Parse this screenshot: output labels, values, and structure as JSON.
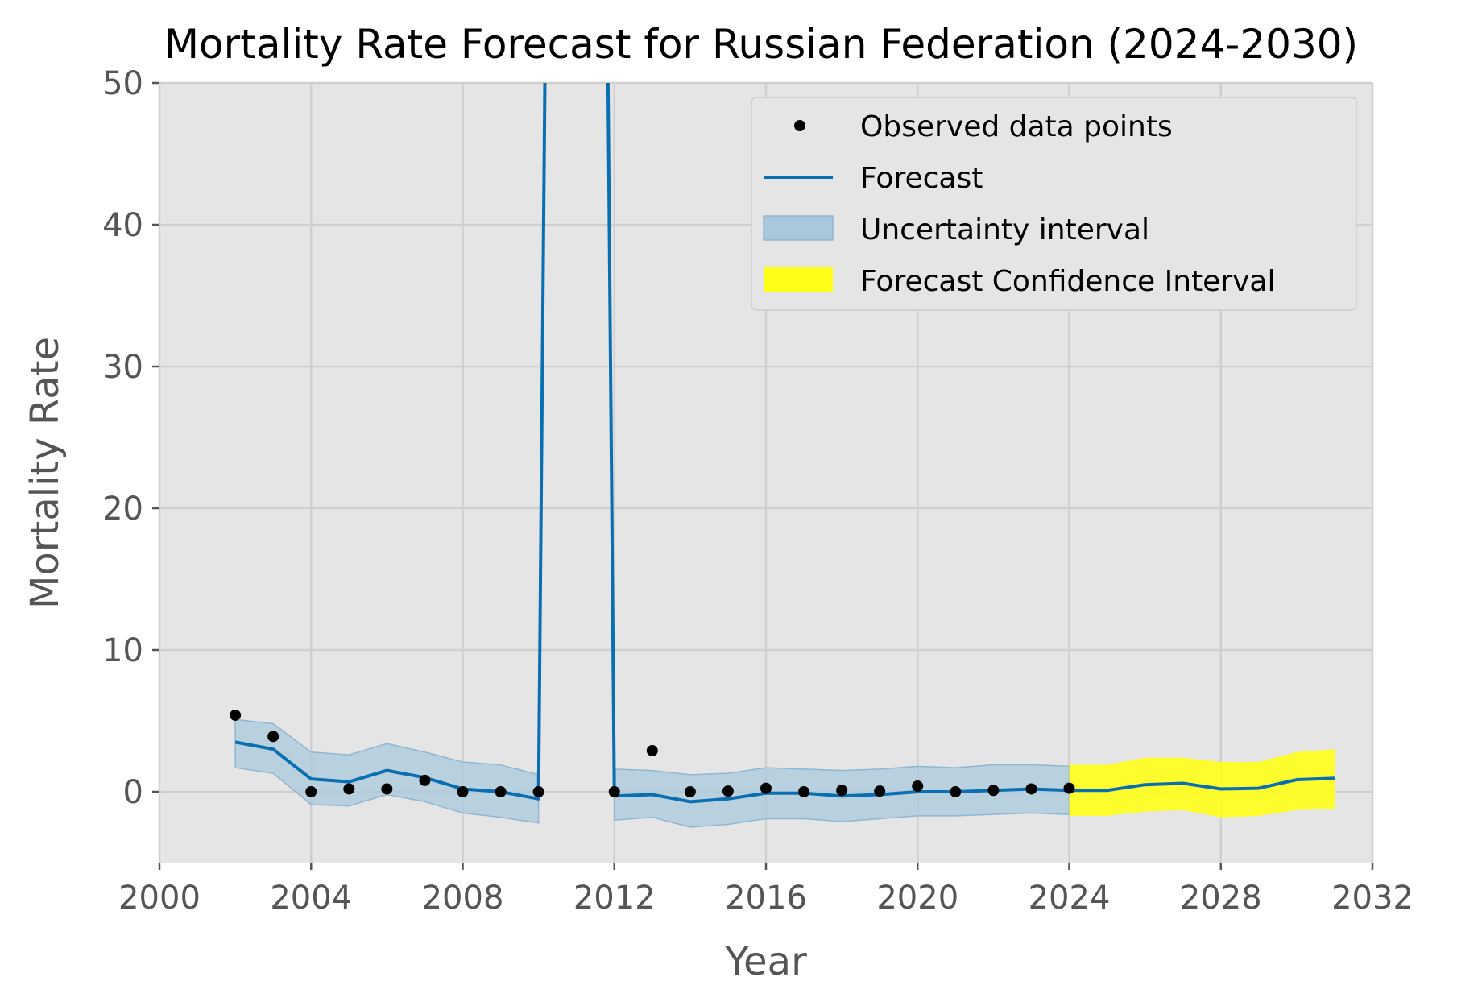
{
  "chart_data": {
    "type": "line",
    "title": "Mortality Rate Forecast for Russian Federation (2024-2030)",
    "xlabel": "Year",
    "ylabel": "Mortality Rate",
    "xlim": [
      2000,
      2032
    ],
    "ylim": [
      -5,
      50
    ],
    "xticks": [
      2000,
      2004,
      2008,
      2012,
      2016,
      2020,
      2024,
      2028,
      2032
    ],
    "yticks": [
      0,
      10,
      20,
      30,
      40,
      50
    ],
    "grid": true,
    "legend_position": "upper right",
    "colors": {
      "background": "#e5e5e5",
      "grid": "#cfcfcf",
      "forecast": "#0a6fb0",
      "uncertainty": "#a9c8dc",
      "confidence": "#ffff1a",
      "points": "#000000"
    },
    "observed": {
      "name": "Observed data points",
      "x": [
        2002,
        2003,
        2004,
        2005,
        2006,
        2007,
        2008,
        2009,
        2010,
        2012,
        2013,
        2014,
        2015,
        2016,
        2017,
        2018,
        2019,
        2020,
        2021,
        2022,
        2023,
        2024
      ],
      "y": [
        5.4,
        3.9,
        0.0,
        0.2,
        0.2,
        0.8,
        0.0,
        0.0,
        0.0,
        0.0,
        2.9,
        0.0,
        0.05,
        0.25,
        0.0,
        0.1,
        0.05,
        0.4,
        0.0,
        0.1,
        0.2,
        0.25
      ]
    },
    "forecast": {
      "name": "Forecast",
      "x": [
        2002,
        2003,
        2004,
        2005,
        2006,
        2007,
        2008,
        2009,
        2010,
        2010.2,
        2011.8,
        2012,
        2013,
        2014,
        2015,
        2016,
        2017,
        2018,
        2019,
        2020,
        2021,
        2022,
        2023,
        2024,
        2025,
        2026,
        2027,
        2028,
        2029,
        2030,
        2031
      ],
      "y": [
        3.5,
        3.0,
        0.9,
        0.7,
        1.5,
        1.0,
        0.2,
        0.0,
        -0.5,
        60,
        60,
        -0.3,
        -0.2,
        -0.7,
        -0.5,
        -0.1,
        -0.1,
        -0.3,
        -0.2,
        0.0,
        0.0,
        0.1,
        0.2,
        0.1,
        0.1,
        0.5,
        0.6,
        0.2,
        0.25,
        0.85,
        0.95
      ]
    },
    "uncertainty_interval": {
      "name": "Uncertainty interval",
      "segments": [
        {
          "x": [
            2002,
            2003,
            2004,
            2005,
            2006,
            2007,
            2008,
            2009,
            2010
          ],
          "lower": [
            1.7,
            1.3,
            -0.9,
            -1.0,
            -0.2,
            -0.7,
            -1.5,
            -1.8,
            -2.2
          ],
          "upper": [
            5.1,
            4.8,
            2.8,
            2.6,
            3.4,
            2.8,
            2.1,
            1.9,
            1.2
          ]
        },
        {
          "x": [
            2012,
            2013,
            2014,
            2015,
            2016,
            2017,
            2018,
            2019,
            2020,
            2021,
            2022,
            2023,
            2024
          ],
          "lower": [
            -2.0,
            -1.8,
            -2.5,
            -2.3,
            -1.9,
            -1.9,
            -2.1,
            -1.9,
            -1.7,
            -1.7,
            -1.6,
            -1.5,
            -1.6
          ],
          "upper": [
            1.6,
            1.5,
            1.2,
            1.3,
            1.7,
            1.6,
            1.5,
            1.6,
            1.8,
            1.7,
            1.9,
            1.9,
            1.8
          ]
        }
      ]
    },
    "confidence_interval": {
      "name": "Forecast Confidence Interval",
      "x": [
        2024,
        2025,
        2026,
        2027,
        2028,
        2029,
        2030,
        2031
      ],
      "lower": [
        -1.7,
        -1.7,
        -1.4,
        -1.3,
        -1.8,
        -1.7,
        -1.3,
        -1.2
      ],
      "upper": [
        1.9,
        1.9,
        2.4,
        2.4,
        2.1,
        2.1,
        2.8,
        3.0
      ]
    }
  }
}
